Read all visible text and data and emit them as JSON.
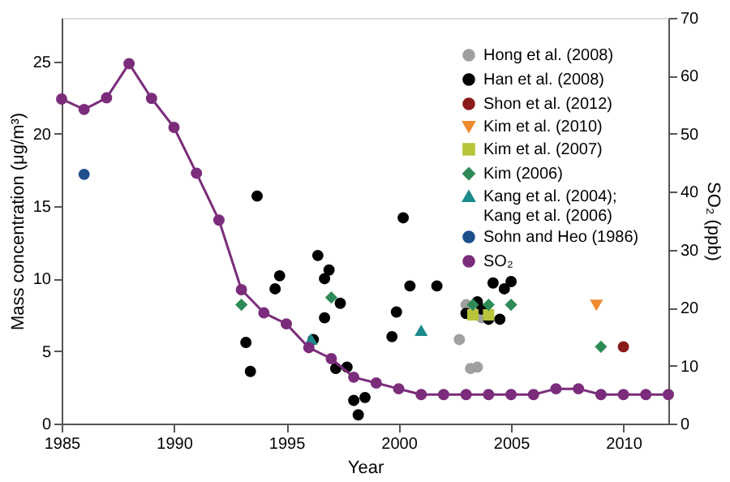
{
  "chart_data": {
    "type": "scatter",
    "xlabel": "Year",
    "ylabel": "Mass concentration (μg/m³)",
    "y2label": "SO₂ (ppb)",
    "xlim": [
      1985,
      2012
    ],
    "xticks": [
      1985,
      1990,
      1995,
      2000,
      2005,
      2010
    ],
    "ylim": [
      0,
      28
    ],
    "yticks": [
      0,
      5,
      10,
      15,
      20,
      25
    ],
    "y2lim": [
      0,
      70
    ],
    "y2ticks": [
      0,
      10,
      20,
      30,
      40,
      50,
      60,
      70
    ],
    "grid": false,
    "legend": "top right",
    "series": [
      {
        "name": "Hong et al. (2008)",
        "color": "#a0a0a0",
        "marker": "circle",
        "x": [
          2003.0,
          2002.7,
          2003.2,
          2003.5,
          2003.7
        ],
        "values": [
          8.2,
          5.8,
          3.8,
          3.9,
          7.3
        ]
      },
      {
        "name": "Han et al. (2008)",
        "color": "#000000",
        "marker": "circle",
        "x": [
          1993.7,
          1994.7,
          1994.5,
          1993.2,
          1993.4,
          1996.4,
          1996.9,
          1996.7,
          1997.4,
          1996.7,
          1996.2,
          1997.2,
          1997.7,
          1998.0,
          1998.5,
          1998.2,
          2000.2,
          2000.5,
          1999.9,
          1999.7,
          2001.7,
          2003.0,
          2003.5,
          2003.7,
          2004.0,
          2004.2,
          2004.5,
          2004.7,
          2005.0
        ],
        "values": [
          15.7,
          10.2,
          9.3,
          5.6,
          3.6,
          11.6,
          10.6,
          10.0,
          8.3,
          7.3,
          5.8,
          3.8,
          3.9,
          1.6,
          1.8,
          0.6,
          14.2,
          9.5,
          7.7,
          6.0,
          9.5,
          7.6,
          8.4,
          7.9,
          7.2,
          9.7,
          7.2,
          9.3,
          9.8
        ]
      },
      {
        "name": "Shon et al. (2012)",
        "color": "#8b1a1a",
        "marker": "circle",
        "x": [
          2010.0
        ],
        "values": [
          5.3
        ]
      },
      {
        "name": "Kim et al. (2010)",
        "color": "#f08a30",
        "marker": "triangle-down",
        "x": [
          2008.8
        ],
        "values": [
          8.2
        ]
      },
      {
        "name": "Kim et al. (2007)",
        "color": "#b8c43a",
        "marker": "square",
        "x": [
          2003.3,
          2004.0
        ],
        "values": [
          7.5,
          7.5
        ]
      },
      {
        "name": "Kim (2006)",
        "color": "#2e8b57",
        "marker": "diamond",
        "x": [
          1993.0,
          1997.0,
          2003.3,
          2004.0,
          2005.0,
          2009.0
        ],
        "values": [
          8.2,
          8.7,
          8.2,
          8.2,
          8.2,
          5.3
        ]
      },
      {
        "name": "Kang et al. (2004);\nKang et al. (2006)",
        "color": "#1a8a8a",
        "marker": "triangle",
        "x": [
          1996.1,
          2001.0
        ],
        "values": [
          5.8,
          6.4
        ]
      },
      {
        "name": "Sohn and Heo (1986)",
        "color": "#1f4e8c",
        "marker": "circle",
        "x": [
          1986.0
        ],
        "values": [
          17.2
        ]
      },
      {
        "name": "SO₂",
        "type": "line",
        "axis": "y2",
        "color": "#7b2d7b",
        "marker": "circle",
        "line_style": "solid",
        "x": [
          1985,
          1986,
          1987,
          1988,
          1989,
          1990,
          1991,
          1992,
          1993,
          1994,
          1995,
          1996,
          1997,
          1998,
          1999,
          2000,
          2001,
          2002,
          2003,
          2004,
          2005,
          2006,
          2007,
          2008,
          2009,
          2010,
          2011,
          2012
        ],
        "values": [
          56,
          54.2,
          56.2,
          62.1,
          56.1,
          51.1,
          43.2,
          35.1,
          23.1,
          19.1,
          17.2,
          13.1,
          11.2,
          8.0,
          7.0,
          6.0,
          5,
          5,
          5,
          5,
          5,
          5,
          6,
          6,
          5,
          5,
          5,
          5
        ]
      }
    ]
  }
}
